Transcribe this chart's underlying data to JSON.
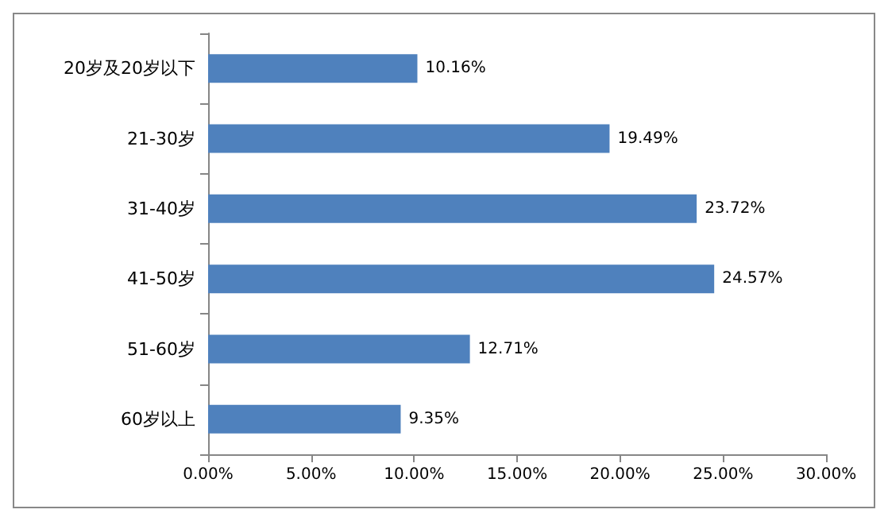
{
  "chart_data": {
    "type": "bar",
    "orientation": "horizontal",
    "categories": [
      "20岁及20岁以下",
      "21-30岁",
      "31-40岁",
      "41-50岁",
      "51-60岁",
      "60岁以上"
    ],
    "values": [
      10.16,
      19.49,
      23.72,
      24.57,
      12.71,
      9.35
    ],
    "value_labels": [
      "10.16%",
      "19.49%",
      "23.72%",
      "24.57%",
      "12.71%",
      "9.35%"
    ],
    "color": "#4f81bd",
    "xlim": [
      0,
      30
    ],
    "xticks": [
      {
        "value": 0,
        "label": "0.00%"
      },
      {
        "value": 5,
        "label": "5.00%"
      },
      {
        "value": 10,
        "label": "10.00%"
      },
      {
        "value": 15,
        "label": "15.00%"
      },
      {
        "value": 20,
        "label": "20.00%"
      },
      {
        "value": 25,
        "label": "25.00%"
      },
      {
        "value": 30,
        "label": "30.00%"
      }
    ],
    "grid": false
  }
}
